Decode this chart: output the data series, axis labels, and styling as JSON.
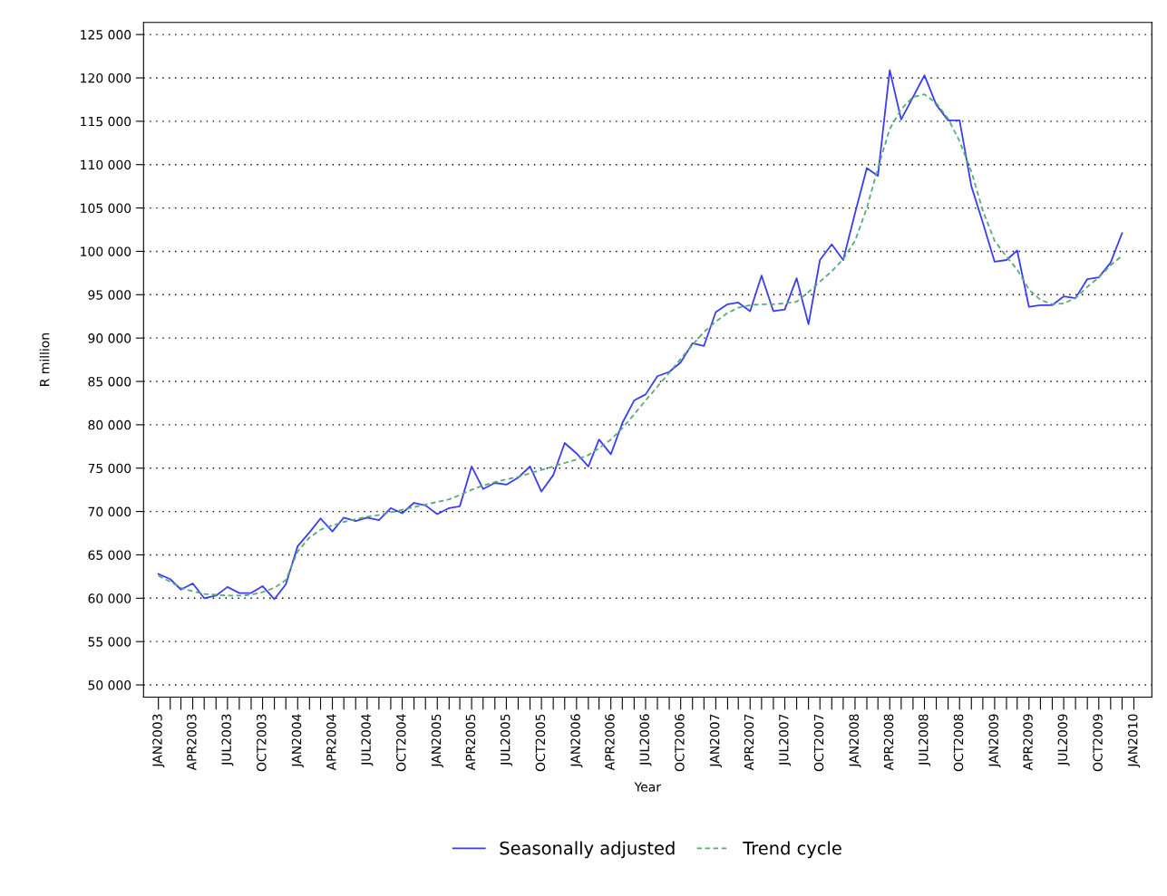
{
  "chart_data": {
    "type": "line",
    "xlabel": "Year",
    "ylabel": "R million",
    "grid": "y",
    "legend": "bottom",
    "ylim": [
      48600,
      126400
    ],
    "yticks": [
      {
        "value": 50000,
        "label": "50 000"
      },
      {
        "value": 55000,
        "label": "55 000"
      },
      {
        "value": 60000,
        "label": "60 000"
      },
      {
        "value": 65000,
        "label": "65 000"
      },
      {
        "value": 70000,
        "label": "70 000"
      },
      {
        "value": 75000,
        "label": "75 000"
      },
      {
        "value": 80000,
        "label": "80 000"
      },
      {
        "value": 85000,
        "label": "85 000"
      },
      {
        "value": 90000,
        "label": "90 000"
      },
      {
        "value": 95000,
        "label": "95 000"
      },
      {
        "value": 100000,
        "label": "100 000"
      },
      {
        "value": 105000,
        "label": "105 000"
      },
      {
        "value": 110000,
        "label": "110 000"
      },
      {
        "value": 115000,
        "label": "115 000"
      },
      {
        "value": 120000,
        "label": "120 000"
      },
      {
        "value": 125000,
        "label": "125 000"
      }
    ],
    "xlim": [
      "2002-11-23",
      "2010-02-17"
    ],
    "xticks": [
      {
        "value": "2003-01",
        "label": "JAN2003"
      },
      {
        "value": "2003-02",
        "label": null
      },
      {
        "value": "2003-03",
        "label": null
      },
      {
        "value": "2003-04",
        "label": "APR2003"
      },
      {
        "value": "2003-05",
        "label": null
      },
      {
        "value": "2003-06",
        "label": null
      },
      {
        "value": "2003-07",
        "label": "JUL2003"
      },
      {
        "value": "2003-08",
        "label": null
      },
      {
        "value": "2003-09",
        "label": null
      },
      {
        "value": "2003-10",
        "label": "OCT2003"
      },
      {
        "value": "2003-11",
        "label": null
      },
      {
        "value": "2003-12",
        "label": null
      },
      {
        "value": "2004-01",
        "label": "JAN2004"
      },
      {
        "value": "2004-02",
        "label": null
      },
      {
        "value": "2004-03",
        "label": null
      },
      {
        "value": "2004-04",
        "label": "APR2004"
      },
      {
        "value": "2004-05",
        "label": null
      },
      {
        "value": "2004-06",
        "label": null
      },
      {
        "value": "2004-07",
        "label": "JUL2004"
      },
      {
        "value": "2004-08",
        "label": null
      },
      {
        "value": "2004-09",
        "label": null
      },
      {
        "value": "2004-10",
        "label": "OCT2004"
      },
      {
        "value": "2004-11",
        "label": null
      },
      {
        "value": "2004-12",
        "label": null
      },
      {
        "value": "2005-01",
        "label": "JAN2005"
      },
      {
        "value": "2005-02",
        "label": null
      },
      {
        "value": "2005-03",
        "label": null
      },
      {
        "value": "2005-04",
        "label": "APR2005"
      },
      {
        "value": "2005-05",
        "label": null
      },
      {
        "value": "2005-06",
        "label": null
      },
      {
        "value": "2005-07",
        "label": "JUL2005"
      },
      {
        "value": "2005-08",
        "label": null
      },
      {
        "value": "2005-09",
        "label": null
      },
      {
        "value": "2005-10",
        "label": "OCT2005"
      },
      {
        "value": "2005-11",
        "label": null
      },
      {
        "value": "2005-12",
        "label": null
      },
      {
        "value": "2006-01",
        "label": "JAN2006"
      },
      {
        "value": "2006-02",
        "label": null
      },
      {
        "value": "2006-03",
        "label": null
      },
      {
        "value": "2006-04",
        "label": "APR2006"
      },
      {
        "value": "2006-05",
        "label": null
      },
      {
        "value": "2006-06",
        "label": null
      },
      {
        "value": "2006-07",
        "label": "JUL2006"
      },
      {
        "value": "2006-08",
        "label": null
      },
      {
        "value": "2006-09",
        "label": null
      },
      {
        "value": "2006-10",
        "label": "OCT2006"
      },
      {
        "value": "2006-11",
        "label": null
      },
      {
        "value": "2006-12",
        "label": null
      },
      {
        "value": "2007-01",
        "label": "JAN2007"
      },
      {
        "value": "2007-02",
        "label": null
      },
      {
        "value": "2007-03",
        "label": null
      },
      {
        "value": "2007-04",
        "label": "APR2007"
      },
      {
        "value": "2007-05",
        "label": null
      },
      {
        "value": "2007-06",
        "label": null
      },
      {
        "value": "2007-07",
        "label": "JUL2007"
      },
      {
        "value": "2007-08",
        "label": null
      },
      {
        "value": "2007-09",
        "label": null
      },
      {
        "value": "2007-10",
        "label": "OCT2007"
      },
      {
        "value": "2007-11",
        "label": null
      },
      {
        "value": "2007-12",
        "label": null
      },
      {
        "value": "2008-01",
        "label": "JAN2008"
      },
      {
        "value": "2008-02",
        "label": null
      },
      {
        "value": "2008-03",
        "label": null
      },
      {
        "value": "2008-04",
        "label": "APR2008"
      },
      {
        "value": "2008-05",
        "label": null
      },
      {
        "value": "2008-06",
        "label": null
      },
      {
        "value": "2008-07",
        "label": "JUL2008"
      },
      {
        "value": "2008-08",
        "label": null
      },
      {
        "value": "2008-09",
        "label": null
      },
      {
        "value": "2008-10",
        "label": "OCT2008"
      },
      {
        "value": "2008-11",
        "label": null
      },
      {
        "value": "2008-12",
        "label": null
      },
      {
        "value": "2009-01",
        "label": "JAN2009"
      },
      {
        "value": "2009-02",
        "label": null
      },
      {
        "value": "2009-03",
        "label": null
      },
      {
        "value": "2009-04",
        "label": "APR2009"
      },
      {
        "value": "2009-05",
        "label": null
      },
      {
        "value": "2009-06",
        "label": null
      },
      {
        "value": "2009-07",
        "label": "JUL2009"
      },
      {
        "value": "2009-08",
        "label": null
      },
      {
        "value": "2009-09",
        "label": null
      },
      {
        "value": "2009-10",
        "label": "OCT2009"
      },
      {
        "value": "2009-11",
        "label": null
      },
      {
        "value": "2009-12",
        "label": null
      },
      {
        "value": "2010-01",
        "label": "JAN2010"
      }
    ],
    "x": [
      "2003-01",
      "2003-02",
      "2003-03",
      "2003-04",
      "2003-05",
      "2003-06",
      "2003-07",
      "2003-08",
      "2003-09",
      "2003-10",
      "2003-11",
      "2003-12",
      "2004-01",
      "2004-02",
      "2004-03",
      "2004-04",
      "2004-05",
      "2004-06",
      "2004-07",
      "2004-08",
      "2004-09",
      "2004-10",
      "2004-11",
      "2004-12",
      "2005-01",
      "2005-02",
      "2005-03",
      "2005-04",
      "2005-05",
      "2005-06",
      "2005-07",
      "2005-08",
      "2005-09",
      "2005-10",
      "2005-11",
      "2005-12",
      "2006-01",
      "2006-02",
      "2006-03",
      "2006-04",
      "2006-05",
      "2006-06",
      "2006-07",
      "2006-08",
      "2006-09",
      "2006-10",
      "2006-11",
      "2006-12",
      "2007-01",
      "2007-02",
      "2007-03",
      "2007-04",
      "2007-05",
      "2007-06",
      "2007-07",
      "2007-08",
      "2007-09",
      "2007-10",
      "2007-11",
      "2007-12",
      "2008-01",
      "2008-02",
      "2008-03",
      "2008-04",
      "2008-05",
      "2008-06",
      "2008-07",
      "2008-08",
      "2008-09",
      "2008-10",
      "2008-11",
      "2008-12",
      "2009-01",
      "2009-02",
      "2009-03",
      "2009-04",
      "2009-05",
      "2009-06",
      "2009-07",
      "2009-08",
      "2009-09",
      "2009-10",
      "2009-11",
      "2009-12"
    ],
    "series": [
      {
        "name": "Seasonally adjusted",
        "color": "#3c3cf5",
        "line_style": "solid",
        "values": [
          62800,
          62200,
          61000,
          61700,
          60000,
          60300,
          61300,
          60600,
          60600,
          61400,
          59900,
          61600,
          66000,
          67600,
          69200,
          67700,
          69300,
          68900,
          69300,
          69000,
          70400,
          69800,
          71000,
          70700,
          69700,
          70400,
          70600,
          75200,
          72600,
          73300,
          73100,
          73900,
          75200,
          72300,
          74200,
          77900,
          76700,
          75200,
          78300,
          76600,
          80200,
          82800,
          83500,
          85600,
          86100,
          87200,
          89400,
          89100,
          93000,
          93900,
          94100,
          93100,
          97200,
          93100,
          93300,
          96900,
          91600,
          99000,
          100800,
          99000,
          104400,
          109600,
          108700,
          120900,
          115200,
          117800,
          120300,
          116900,
          115100,
          115100,
          107500,
          103300,
          98800,
          99000,
          100100,
          93600,
          93800,
          93800,
          94800,
          94600,
          96800,
          97000,
          98700,
          102100
        ]
      },
      {
        "name": "Trend cycle",
        "color": "#5aaa7a",
        "line_style": "dashed",
        "values": [
          62600,
          61900,
          61200,
          60800,
          60500,
          60400,
          60300,
          60300,
          60400,
          60700,
          61200,
          62100,
          65400,
          67000,
          67900,
          68400,
          68800,
          69100,
          69400,
          69600,
          69900,
          70200,
          70500,
          70800,
          71100,
          71400,
          71900,
          72500,
          73000,
          73400,
          73700,
          74000,
          74400,
          74800,
          75200,
          75600,
          76000,
          76500,
          77300,
          78300,
          79600,
          81200,
          82800,
          84400,
          86000,
          87600,
          89200,
          90700,
          91900,
          92900,
          93500,
          93800,
          93900,
          93900,
          94000,
          94200,
          95300,
          96500,
          97700,
          99100,
          101200,
          105000,
          109600,
          114100,
          116400,
          117800,
          118100,
          117100,
          115300,
          112700,
          109200,
          104700,
          101200,
          99400,
          97900,
          95600,
          94400,
          93900,
          94000,
          94600,
          95900,
          97000,
          98400,
          99500
        ]
      }
    ]
  }
}
